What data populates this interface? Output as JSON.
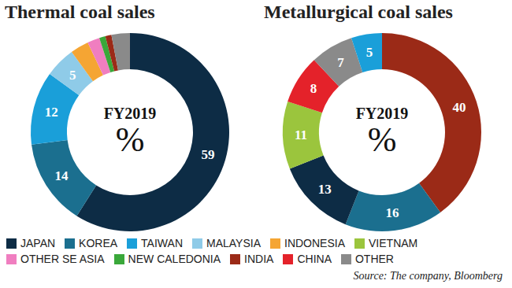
{
  "chart_data": [
    {
      "type": "pie",
      "title": "Thermal coal sales",
      "annotations": [
        "FY2019",
        "%"
      ],
      "categories": [
        "JAPAN",
        "KOREA",
        "TAIWAN",
        "MALAYSIA",
        "INDONESIA",
        "VIETNAM",
        "OTHER SE ASIA",
        "NEW CALEDONIA",
        "INDIA",
        "CHINA",
        "OTHER"
      ],
      "values": [
        59,
        14,
        12,
        5,
        3,
        0,
        2,
        1,
        1,
        0,
        3
      ],
      "value_labels": [
        "59",
        "14",
        "12",
        "5",
        null,
        null,
        null,
        null,
        null,
        null,
        null
      ],
      "data_labels": true,
      "colors": [
        "#0d2c45",
        "#1b6f8f",
        "#1a9fd9",
        "#8fcbe8",
        "#f5a533",
        "#9bc53d",
        "#f07ec0",
        "#3aa83a",
        "#9b2a17",
        "#e4222a",
        "#8a8a8a"
      ],
      "legend": "bottom"
    },
    {
      "type": "pie",
      "title": "Metallurgical coal sales",
      "annotations": [
        "FY2019",
        "%"
      ],
      "categories": [
        "INDIA",
        "KOREA",
        "JAPAN",
        "VIETNAM",
        "CHINA",
        "OTHER",
        "TAIWAN"
      ],
      "values": [
        40,
        16,
        13,
        11,
        8,
        7,
        5
      ],
      "data_labels": true,
      "colors": [
        "#9b2a17",
        "#1b6f8f",
        "#0d2c45",
        "#9bc53d",
        "#e4222a",
        "#8a8a8a",
        "#1a9fd9"
      ]
    }
  ],
  "source": "Source: The company, Bloomberg"
}
